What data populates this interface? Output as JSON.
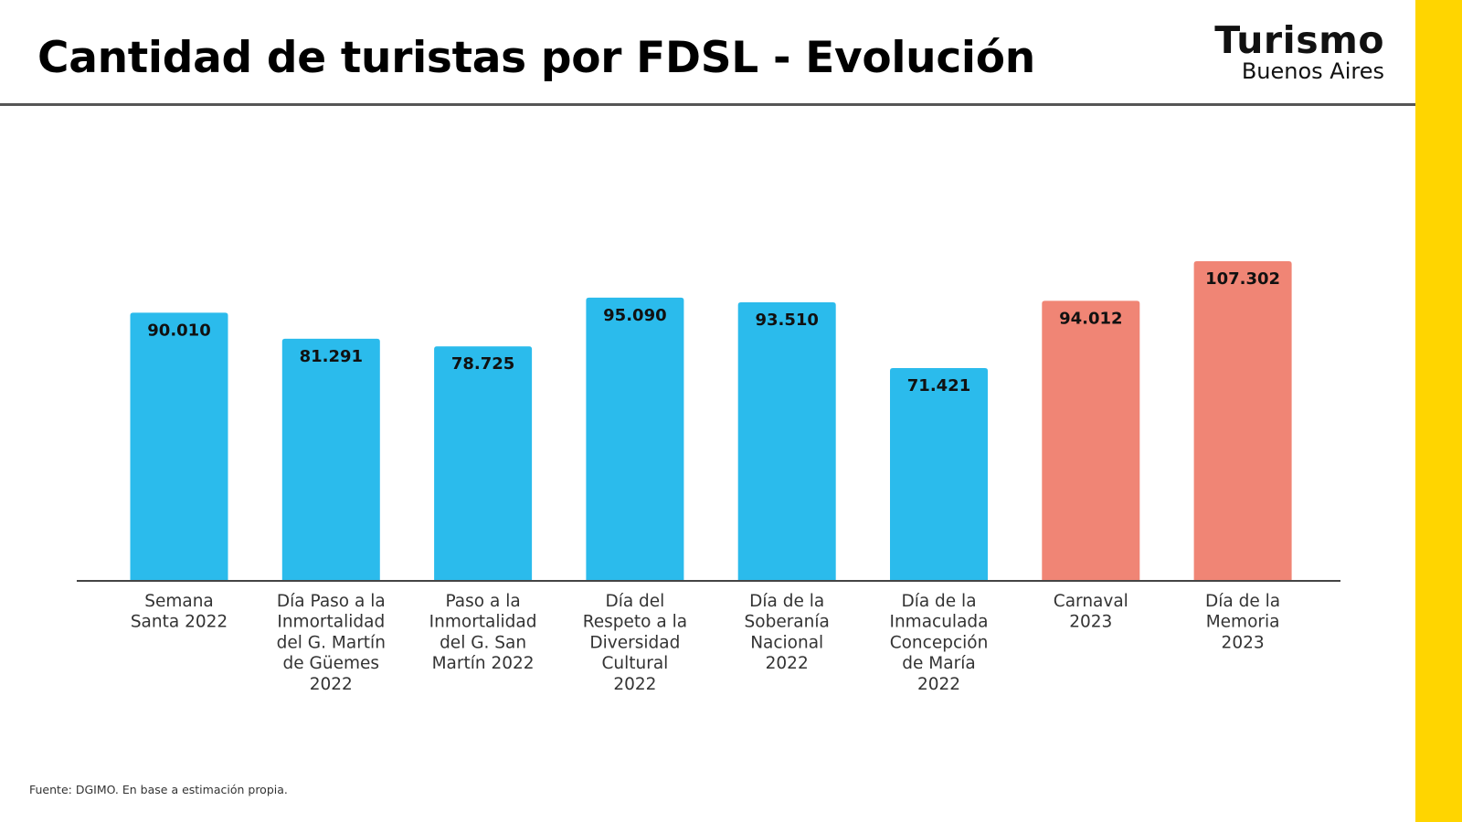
{
  "header": {
    "title": "Cantidad de turistas por FDSL - Evolución",
    "logo_main": "Turismo",
    "logo_sub": "Buenos Aires"
  },
  "footer": {
    "source": "Fuente: DGIMO. En base a estimación propia."
  },
  "colors": {
    "bar_2022": "#2BBBEC",
    "bar_2023": "#F08575",
    "accent_stripe": "#FFD500",
    "axis": "#444444"
  },
  "chart_data": {
    "type": "bar",
    "title": "Cantidad de turistas por FDSL - Evolución",
    "xlabel": "",
    "ylabel": "",
    "ylim": [
      0,
      107302
    ],
    "grid": false,
    "legend": "none",
    "categories": [
      [
        "Semana",
        "Santa 2022"
      ],
      [
        "Día Paso a la",
        "Inmortalidad",
        "del G. Martín",
        "de Güemes",
        "2022"
      ],
      [
        "Paso a la",
        "Inmortalidad",
        "del G. San",
        "Martín 2022"
      ],
      [
        "Día del",
        "Respeto a la",
        "Diversidad",
        "Cultural",
        "2022"
      ],
      [
        "Día de la",
        "Soberanía",
        "Nacional",
        "2022"
      ],
      [
        "Día de la",
        "Inmaculada",
        "Concepción",
        "de María",
        "2022"
      ],
      [
        "Carnaval",
        "2023"
      ],
      [
        "Día de la",
        "Memoria",
        "2023"
      ]
    ],
    "values": [
      90010,
      81291,
      78725,
      95090,
      93510,
      71421,
      94012,
      107302
    ],
    "value_labels": [
      "90.010",
      "81.291",
      "78.725",
      "95.090",
      "93.510",
      "71.421",
      "94.012",
      "107.302"
    ],
    "years": [
      2022,
      2022,
      2022,
      2022,
      2022,
      2022,
      2023,
      2023
    ]
  }
}
